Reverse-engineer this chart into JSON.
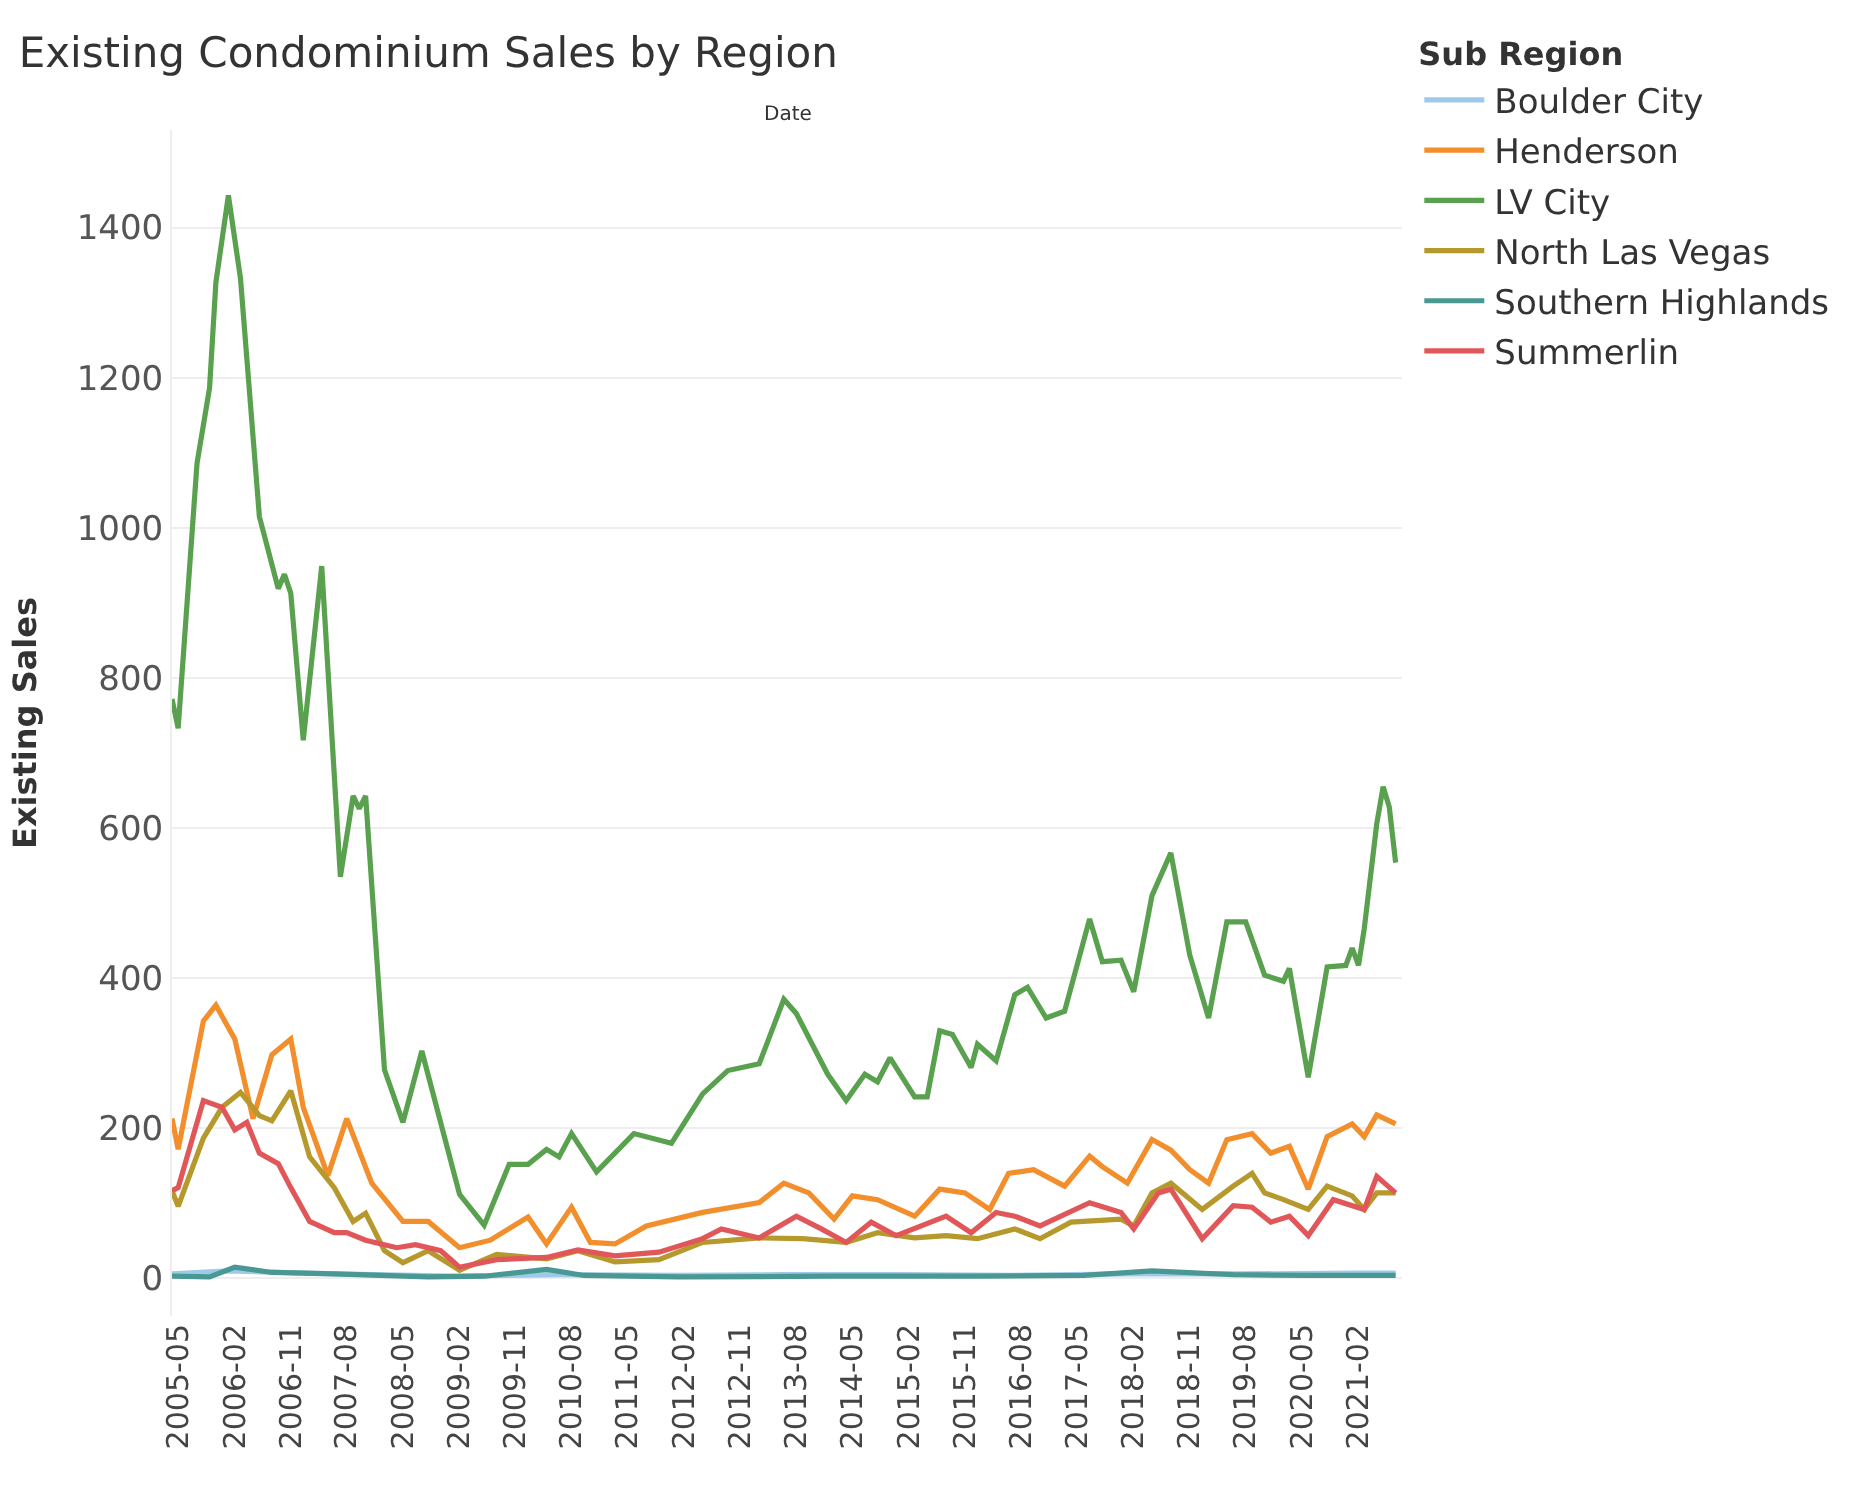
{
  "chart_data": {
    "type": "line",
    "title": "Existing Condominium Sales by Region",
    "xlabel": "Date",
    "ylabel": "Existing Sales",
    "legend_title": "Sub Region",
    "legend": "top right",
    "grid": "y",
    "marker": "none",
    "line_style": "solid",
    "xlim": [
      "2005-04",
      "2021-09"
    ],
    "ylim": [
      -50,
      1530
    ],
    "xticks": [
      "2005-05",
      "2006-02",
      "2006-11",
      "2007-08",
      "2008-05",
      "2009-02",
      "2009-11",
      "2010-08",
      "2011-05",
      "2012-02",
      "2012-11",
      "2013-08",
      "2014-05",
      "2015-02",
      "2015-11",
      "2016-08",
      "2017-05",
      "2018-02",
      "2018-11",
      "2019-08",
      "2020-05",
      "2021-02"
    ],
    "yticks": [
      0,
      200,
      400,
      600,
      800,
      1000,
      1200,
      1400
    ],
    "series": [
      {
        "name": "Boulder City",
        "color": "#9ecae9",
        "x": [
          "2005-04",
          "2006-01",
          "2007-06",
          "2009-01",
          "2010-06",
          "2012-01",
          "2013-06",
          "2015-01",
          "2016-06",
          "2018-01",
          "2019-06",
          "2021-01",
          "2021-08"
        ],
        "values": [
          6,
          10,
          6,
          3,
          5,
          4,
          5,
          5,
          4,
          6,
          6,
          7,
          7
        ]
      },
      {
        "name": "Henderson",
        "color": "#f28e2b",
        "x": [
          "2005-04",
          "2005-05",
          "2005-09",
          "2005-11",
          "2006-02",
          "2006-05",
          "2006-08",
          "2006-11",
          "2007-01",
          "2007-05",
          "2007-08",
          "2007-12",
          "2008-05",
          "2008-09",
          "2009-02",
          "2009-07",
          "2010-01",
          "2010-04",
          "2010-08",
          "2010-11",
          "2011-03",
          "2011-08",
          "2012-05",
          "2013-02",
          "2013-06",
          "2013-10",
          "2014-02",
          "2014-05",
          "2014-09",
          "2015-03",
          "2015-07",
          "2015-11",
          "2016-03",
          "2016-06",
          "2016-10",
          "2017-03",
          "2017-07",
          "2017-09",
          "2018-01",
          "2018-05",
          "2018-08",
          "2018-11",
          "2019-02",
          "2019-05",
          "2019-09",
          "2019-12",
          "2020-03",
          "2020-06",
          "2020-09",
          "2021-01",
          "2021-03",
          "2021-05",
          "2021-08"
        ],
        "values": [
          213,
          172,
          343,
          364,
          319,
          213,
          298,
          319,
          228,
          137,
          213,
          127,
          76,
          76,
          41,
          51,
          82,
          46,
          95,
          48,
          46,
          70,
          88,
          101,
          127,
          114,
          79,
          110,
          105,
          83,
          119,
          114,
          92,
          140,
          145,
          123,
          163,
          149,
          127,
          185,
          171,
          145,
          127,
          185,
          193,
          167,
          176,
          119,
          189,
          206,
          189,
          218,
          206
        ]
      },
      {
        "name": "LV City",
        "color": "#59a14f",
        "x": [
          "2005-04",
          "2005-05",
          "2005-08",
          "2005-10",
          "2005-11",
          "2006-01",
          "2006-03",
          "2006-06",
          "2006-09",
          "2006-10",
          "2006-11",
          "2007-01",
          "2007-04",
          "2007-07",
          "2007-09",
          "2007-10",
          "2007-11",
          "2008-02",
          "2008-05",
          "2008-08",
          "2009-02",
          "2009-06",
          "2009-10",
          "2010-01",
          "2010-04",
          "2010-06",
          "2010-08",
          "2010-12",
          "2011-06",
          "2011-12",
          "2012-05",
          "2012-09",
          "2013-02",
          "2013-06",
          "2013-08",
          "2014-01",
          "2014-04",
          "2014-07",
          "2014-09",
          "2014-11",
          "2015-03",
          "2015-05",
          "2015-07",
          "2015-09",
          "2015-12",
          "2016-01",
          "2016-04",
          "2016-07",
          "2016-09",
          "2016-12",
          "2017-03",
          "2017-07",
          "2017-09",
          "2017-12",
          "2018-02",
          "2018-05",
          "2018-08",
          "2018-11",
          "2019-02",
          "2019-05",
          "2019-08",
          "2019-11",
          "2020-02",
          "2020-03",
          "2020-06",
          "2020-09",
          "2020-12",
          "2021-01",
          "2021-02",
          "2021-03",
          "2021-05",
          "2021-06",
          "2021-07",
          "2021-08"
        ],
        "values": [
          772,
          733,
          1086,
          1186,
          1327,
          1443,
          1332,
          1015,
          919,
          938,
          913,
          717,
          949,
          535,
          643,
          626,
          643,
          278,
          208,
          303,
          112,
          71,
          152,
          152,
          172,
          162,
          193,
          142,
          193,
          180,
          246,
          277,
          286,
          372,
          353,
          272,
          237,
          272,
          262,
          294,
          242,
          242,
          330,
          325,
          281,
          312,
          290,
          378,
          388,
          347,
          356,
          479,
          422,
          424,
          382,
          510,
          567,
          431,
          347,
          475,
          475,
          404,
          396,
          413,
          268,
          415,
          417,
          440,
          417,
          466,
          606,
          655,
          628,
          554
        ]
      },
      {
        "name": "North Las Vegas",
        "color": "#b6992d",
        "x": [
          "2005-04",
          "2005-05",
          "2005-09",
          "2005-12",
          "2006-03",
          "2006-06",
          "2006-08",
          "2006-11",
          "2007-02",
          "2007-06",
          "2007-09",
          "2007-11",
          "2008-02",
          "2008-05",
          "2008-09",
          "2009-02",
          "2009-08",
          "2010-04",
          "2010-09",
          "2011-03",
          "2011-10",
          "2012-05",
          "2013-02",
          "2013-09",
          "2014-04",
          "2014-09",
          "2015-03",
          "2015-08",
          "2016-01",
          "2016-07",
          "2016-11",
          "2017-04",
          "2017-12",
          "2018-02",
          "2018-05",
          "2018-08",
          "2019-01",
          "2019-06",
          "2019-09",
          "2019-11",
          "2020-02",
          "2020-06",
          "2020-09",
          "2021-01",
          "2021-03",
          "2021-05",
          "2021-08"
        ],
        "values": [
          117,
          96,
          187,
          228,
          248,
          217,
          210,
          250,
          162,
          121,
          76,
          87,
          37,
          21,
          37,
          11,
          32,
          26,
          37,
          22,
          25,
          48,
          54,
          53,
          48,
          61,
          54,
          57,
          53,
          66,
          53,
          75,
          79,
          70,
          114,
          127,
          92,
          123,
          140,
          114,
          105,
          92,
          123,
          110,
          92,
          114,
          114
        ]
      },
      {
        "name": "Southern Highlands",
        "color": "#499894",
        "x": [
          "2005-04",
          "2005-10",
          "2006-02",
          "2006-08",
          "2007-06",
          "2008-09",
          "2009-06",
          "2010-04",
          "2010-10",
          "2012-01",
          "2014-01",
          "2016-01",
          "2017-06",
          "2018-05",
          "2019-06",
          "2020-06",
          "2021-08"
        ],
        "values": [
          3,
          2,
          15,
          8,
          6,
          2,
          3,
          12,
          4,
          2,
          3,
          3,
          4,
          10,
          5,
          4,
          4
        ]
      },
      {
        "name": "Summerlin",
        "color": "#e15759",
        "x": [
          "2005-04",
          "2005-05",
          "2005-09",
          "2005-12",
          "2006-02",
          "2006-04",
          "2006-06",
          "2006-09",
          "2006-11",
          "2007-02",
          "2007-06",
          "2007-08",
          "2007-11",
          "2008-04",
          "2008-07",
          "2008-11",
          "2009-02",
          "2009-08",
          "2010-04",
          "2010-09",
          "2011-03",
          "2011-10",
          "2012-05",
          "2012-08",
          "2013-02",
          "2013-08",
          "2013-12",
          "2014-04",
          "2014-08",
          "2014-12",
          "2015-08",
          "2015-12",
          "2016-04",
          "2016-07",
          "2016-11",
          "2017-07",
          "2017-12",
          "2018-02",
          "2018-06",
          "2018-08",
          "2019-01",
          "2019-06",
          "2019-09",
          "2019-12",
          "2020-03",
          "2020-06",
          "2020-10",
          "2021-03",
          "2021-05",
          "2021-08"
        ],
        "values": [
          117,
          121,
          237,
          228,
          198,
          208,
          167,
          153,
          121,
          76,
          61,
          61,
          51,
          41,
          45,
          37,
          15,
          25,
          28,
          38,
          30,
          35,
          53,
          66,
          54,
          83,
          66,
          48,
          75,
          57,
          83,
          61,
          88,
          83,
          70,
          101,
          88,
          66,
          114,
          119,
          53,
          97,
          95,
          75,
          83,
          57,
          105,
          92,
          136,
          114
        ]
      }
    ]
  }
}
